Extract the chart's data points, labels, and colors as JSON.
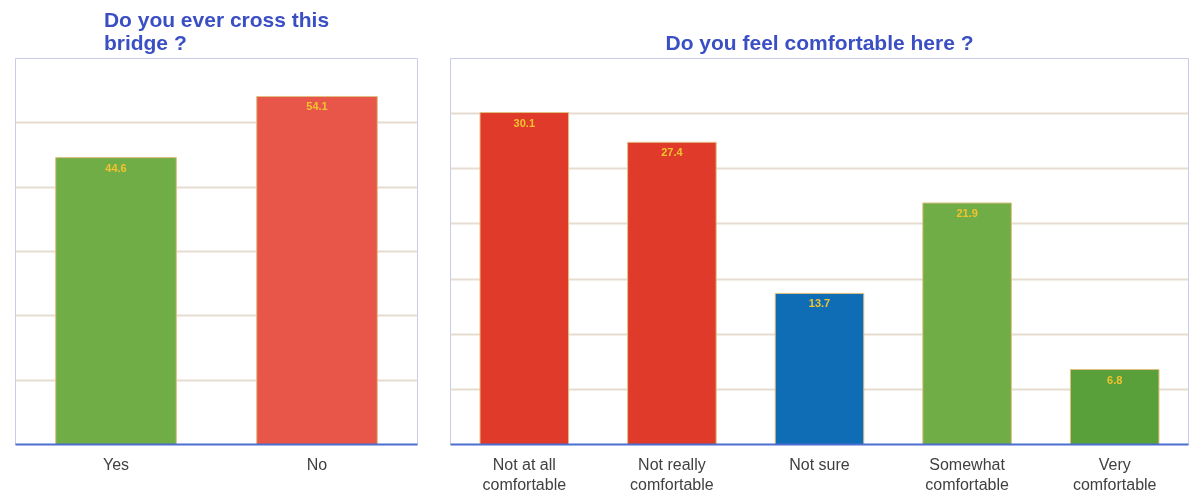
{
  "chart_data": [
    {
      "type": "bar",
      "title": "Do you ever cross this bridge ?",
      "categories": [
        "Yes",
        "No"
      ],
      "values": [
        44.6,
        54.1
      ],
      "colors": [
        "#70ad47",
        "#e8564a"
      ],
      "ylim": [
        0,
        60
      ],
      "yticks": [
        {
          "value": 0,
          "label": null
        },
        {
          "value": 10,
          "label": null
        },
        {
          "value": 20,
          "label": null
        },
        {
          "value": 30,
          "label": null
        },
        {
          "value": 40,
          "label": null
        },
        {
          "value": 50,
          "label": null
        },
        {
          "value": 60,
          "label": null
        }
      ],
      "grid": "y",
      "tick_labels": "x",
      "data_labels": true
    },
    {
      "type": "bar",
      "title": "Do you feel comfortable here ?",
      "categories": [
        "Not at all comfortable",
        "Not really comfortable",
        "Not sure",
        "Somewhat comfortable",
        "Very comfortable"
      ],
      "values": [
        30.1,
        27.4,
        13.7,
        21.9,
        6.8
      ],
      "colors": [
        "#e03a2a",
        "#e03a2a",
        "#0f6db5",
        "#70ad47",
        "#5aa03a"
      ],
      "ylim": [
        0,
        35
      ],
      "yticks": [
        {
          "value": 0,
          "label": null
        },
        {
          "value": 5,
          "label": null
        },
        {
          "value": 10,
          "label": null
        },
        {
          "value": 15,
          "label": null
        },
        {
          "value": 20,
          "label": null
        },
        {
          "value": 25,
          "label": null
        },
        {
          "value": 30,
          "label": null
        },
        {
          "value": 35,
          "label": null
        }
      ],
      "grid": "y",
      "tick_labels": "x",
      "data_labels": true
    }
  ]
}
